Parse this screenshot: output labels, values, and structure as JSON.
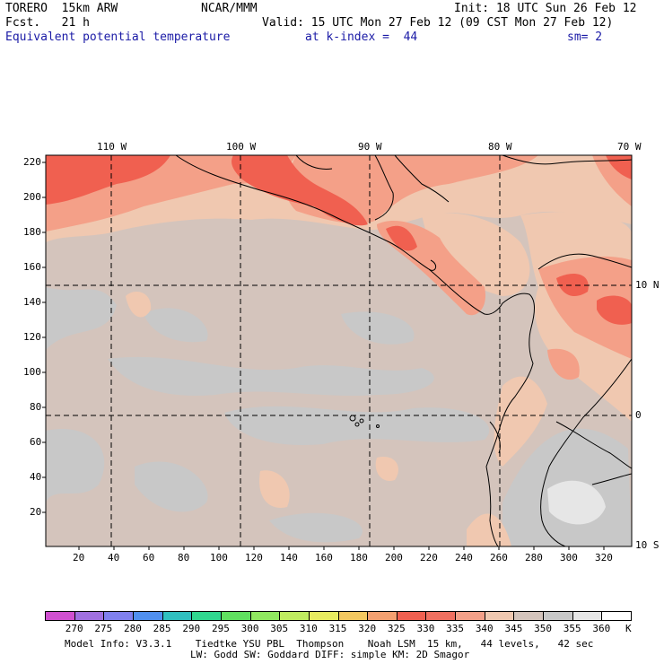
{
  "header": {
    "model_name": "TORERO  15km ARW",
    "center": "NCAR/MMM",
    "init": "Init: 18 UTC Sun 26 Feb 12",
    "fcst": "Fcst.   21 h",
    "valid": "Valid: 15 UTC Mon 27 Feb 12 (09 CST Mon 27 Feb 12)",
    "field": "Equivalent potential temperature",
    "level": "at k-index =  44",
    "smoothing": "sm= 2"
  },
  "map": {
    "lon_labels": [
      "110 W",
      "100 W",
      "90 W",
      "80 W",
      "70 W"
    ],
    "lat_labels": [
      "10 N",
      "0",
      "10 S"
    ],
    "y_grid_labels": [
      "220",
      "200",
      "180",
      "160",
      "140",
      "120",
      "100",
      "80",
      "60",
      "40",
      "20"
    ],
    "x_grid_labels": [
      "20",
      "40",
      "60",
      "80",
      "100",
      "120",
      "140",
      "160",
      "180",
      "200",
      "220",
      "240",
      "260",
      "280",
      "300",
      "320"
    ]
  },
  "colorbar": {
    "labels": [
      "270",
      "275",
      "280",
      "285",
      "290",
      "295",
      "300",
      "305",
      "310",
      "315",
      "320",
      "325",
      "330",
      "335",
      "340",
      "345",
      "350",
      "355",
      "360"
    ],
    "unit": "K",
    "colors": [
      "#d050d0",
      "#a070e0",
      "#8080ee",
      "#5090f0",
      "#30c0c0",
      "#30d890",
      "#60e060",
      "#90e860",
      "#c0ec60",
      "#e8ec60",
      "#f4c860",
      "#f4a070",
      "#f06050",
      "#f07060",
      "#f4a088",
      "#f0c8b0",
      "#d4c4bc",
      "#c8c8c8",
      "#e6e6e6",
      "#ffffff"
    ]
  },
  "footer": {
    "line1": "Model Info: V3.3.1    Tiedtke YSU PBL  Thompson    Noah LSM  15 km,   44 levels,   42 sec",
    "line2": "LW: Godd SW: Goddard DIFF: simple KM: 2D Smagor"
  }
}
